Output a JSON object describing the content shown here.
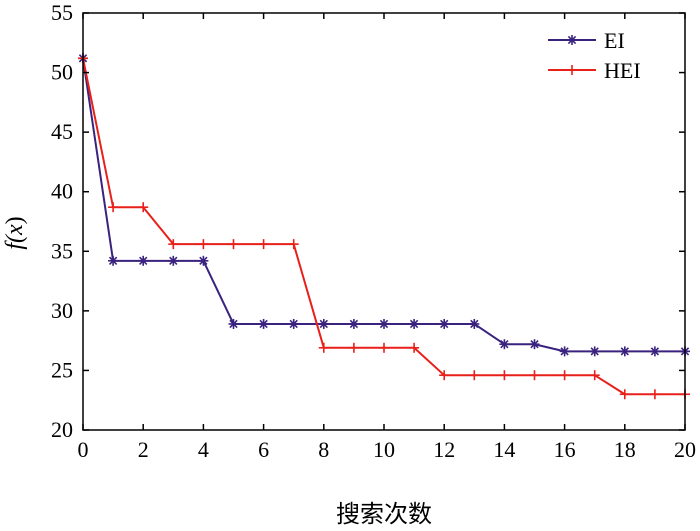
{
  "chart_data": {
    "type": "line",
    "xlabel": "搜索次数",
    "ylabel_prefix": "f(",
    "ylabel_var": "x",
    "ylabel_suffix": ")",
    "xlim": [
      0,
      20
    ],
    "ylim": [
      20,
      55
    ],
    "xticks": [
      0,
      2,
      4,
      6,
      8,
      10,
      12,
      14,
      16,
      18,
      20
    ],
    "yticks": [
      20,
      25,
      30,
      35,
      40,
      45,
      50,
      55
    ],
    "grid": false,
    "legend_position": "top-right",
    "series": [
      {
        "name": "EI",
        "color": "#3a237e",
        "marker": "asterisk",
        "x": [
          0,
          1,
          2,
          3,
          4,
          5,
          6,
          7,
          8,
          9,
          10,
          11,
          12,
          13,
          14,
          15,
          16,
          17,
          18,
          19,
          20
        ],
        "y": [
          51.2,
          34.2,
          34.2,
          34.2,
          34.2,
          28.9,
          28.9,
          28.9,
          28.9,
          28.9,
          28.9,
          28.9,
          28.9,
          28.9,
          27.2,
          27.2,
          26.6,
          26.6,
          26.6,
          26.6,
          26.6
        ]
      },
      {
        "name": "HEI",
        "color": "#e8201a",
        "marker": "plus",
        "x": [
          0,
          1,
          2,
          3,
          4,
          5,
          6,
          7,
          8,
          9,
          10,
          11,
          12,
          13,
          14,
          15,
          16,
          17,
          18,
          19,
          20
        ],
        "y": [
          51.2,
          38.7,
          38.7,
          35.6,
          35.6,
          35.6,
          35.6,
          35.6,
          26.9,
          26.9,
          26.9,
          26.9,
          24.6,
          24.6,
          24.6,
          24.6,
          24.6,
          24.6,
          23.0,
          23.0,
          23.0
        ]
      }
    ]
  }
}
